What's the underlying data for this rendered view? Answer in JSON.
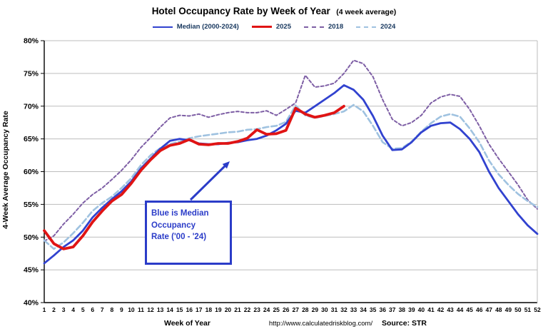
{
  "title": "Hotel Occupancy Rate by  Week of Year",
  "title_suffix": "(4 week average)",
  "ylabel": "4-Week Average Occupancy Rate",
  "xlabel": "Week of Year",
  "footer_url": "http://www.calculatedriskblog.com/",
  "source": "Source: STR",
  "annotation": {
    "lines": [
      "Blue is Median",
      "Occupancy",
      "Rate ('00 - '24)"
    ]
  },
  "colors": {
    "median_blue": "#3142cf",
    "red_2025": "#e01414",
    "purple_2018": "#7E5FA5",
    "lightblue_2024": "#9fc2e0",
    "gridline": "#bdbdbd",
    "axis": "#000000",
    "annotation_blue": "#2b3cc8",
    "legend_text": "#17375E"
  },
  "chart_data": {
    "type": "line",
    "title": "Hotel Occupancy Rate by Week of Year (4 week average)",
    "xlabel": "Week of Year",
    "ylabel": "4-Week Average Occupancy Rate",
    "x": [
      1,
      2,
      3,
      4,
      5,
      6,
      7,
      8,
      9,
      10,
      11,
      12,
      13,
      14,
      15,
      16,
      17,
      18,
      19,
      20,
      21,
      22,
      23,
      24,
      25,
      26,
      27,
      28,
      29,
      30,
      31,
      32,
      33,
      34,
      35,
      36,
      37,
      38,
      39,
      40,
      41,
      42,
      43,
      44,
      45,
      46,
      47,
      48,
      49,
      50,
      51,
      52
    ],
    "ylim": [
      40,
      80
    ],
    "ytick_step": 5,
    "ytick_format": "percent",
    "grid": "horizontal",
    "legend_position": "top",
    "series": [
      {
        "name": "Median (2000-2024)",
        "color": "#3142cf",
        "style": "solid",
        "width": 2.8,
        "dash": "",
        "values": [
          46.0,
          47.2,
          48.5,
          49.5,
          51.0,
          53.0,
          54.5,
          55.8,
          57.0,
          58.5,
          60.5,
          62.0,
          63.5,
          64.7,
          65.0,
          64.8,
          64.3,
          64.2,
          64.2,
          64.4,
          64.5,
          64.8,
          65.0,
          65.5,
          66.3,
          67.3,
          69.3,
          69.0,
          70.0,
          71.0,
          72.0,
          73.2,
          72.5,
          71.0,
          68.5,
          65.5,
          63.3,
          63.4,
          64.5,
          66.0,
          67.0,
          67.4,
          67.5,
          66.5,
          65.0,
          63.0,
          60.0,
          57.5,
          55.5,
          53.5,
          51.8,
          50.5
        ]
      },
      {
        "name": "2025",
        "color": "#e01414",
        "style": "solid",
        "width": 3.8,
        "dash": "",
        "values": [
          51.0,
          49.0,
          48.2,
          48.5,
          50.2,
          52.3,
          54.0,
          55.5,
          56.5,
          58.2,
          60.2,
          61.8,
          63.2,
          64.0,
          64.3,
          64.9,
          64.2,
          64.1,
          64.3,
          64.3,
          64.6,
          65.1,
          66.4,
          65.7,
          65.8,
          66.3,
          69.7,
          68.8,
          68.3,
          68.6,
          69.0,
          70.0
        ]
      },
      {
        "name": "2018",
        "color": "#7E5FA5",
        "style": "dashed",
        "width": 2,
        "dash": "4,3",
        "values": [
          49.4,
          50.2,
          52.0,
          53.5,
          55.2,
          56.5,
          57.5,
          58.8,
          60.2,
          61.8,
          63.7,
          65.2,
          66.8,
          68.2,
          68.6,
          68.5,
          68.8,
          68.3,
          68.7,
          69.0,
          69.2,
          69.0,
          69.0,
          69.3,
          68.6,
          69.5,
          70.5,
          74.7,
          72.9,
          73.1,
          73.5,
          75.0,
          77.0,
          76.5,
          74.5,
          71.0,
          68.0,
          67.0,
          67.5,
          68.6,
          70.5,
          71.4,
          71.8,
          71.5,
          69.5,
          67.0,
          64.2,
          62.0,
          60.0,
          58.0,
          55.7,
          54.3
        ]
      },
      {
        "name": "2024",
        "color": "#9fc2e0",
        "style": "dashed",
        "width": 2.6,
        "dash": "8,4",
        "values": [
          49.5,
          48.2,
          49.2,
          50.6,
          52.2,
          54.0,
          55.2,
          56.2,
          57.5,
          59.0,
          61.0,
          62.5,
          63.6,
          64.2,
          64.6,
          65.1,
          65.4,
          65.6,
          65.8,
          66.0,
          66.1,
          66.4,
          66.5,
          66.8,
          67.0,
          67.6,
          70.1,
          68.6,
          68.2,
          68.5,
          68.8,
          69.2,
          70.2,
          69.2,
          67.0,
          64.5,
          63.5,
          63.6,
          64.6,
          66.1,
          67.4,
          68.4,
          68.8,
          68.4,
          66.6,
          64.5,
          61.7,
          59.6,
          58.0,
          56.6,
          55.5,
          54.6
        ]
      }
    ]
  }
}
